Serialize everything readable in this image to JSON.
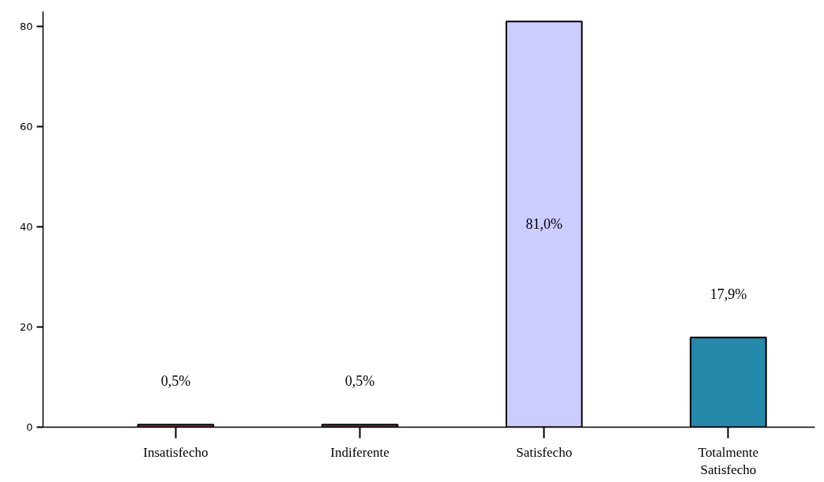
{
  "chart_data": {
    "type": "bar",
    "categories": [
      "Insatisfecho",
      "Indiferente",
      "Satisfecho",
      "Totalmente Satisfecho"
    ],
    "values": [
      0.5,
      0.5,
      81.0,
      17.9
    ],
    "colors": [
      "#c83c46",
      "#a03c6e",
      "#ccccff",
      "#2489ab"
    ],
    "value_labels": [
      "0,5%",
      "0,5%",
      "81,0%",
      "17,9%"
    ],
    "ylim": [
      0,
      83
    ],
    "yticks": [
      0,
      20,
      40,
      60,
      80
    ],
    "grid": false
  }
}
